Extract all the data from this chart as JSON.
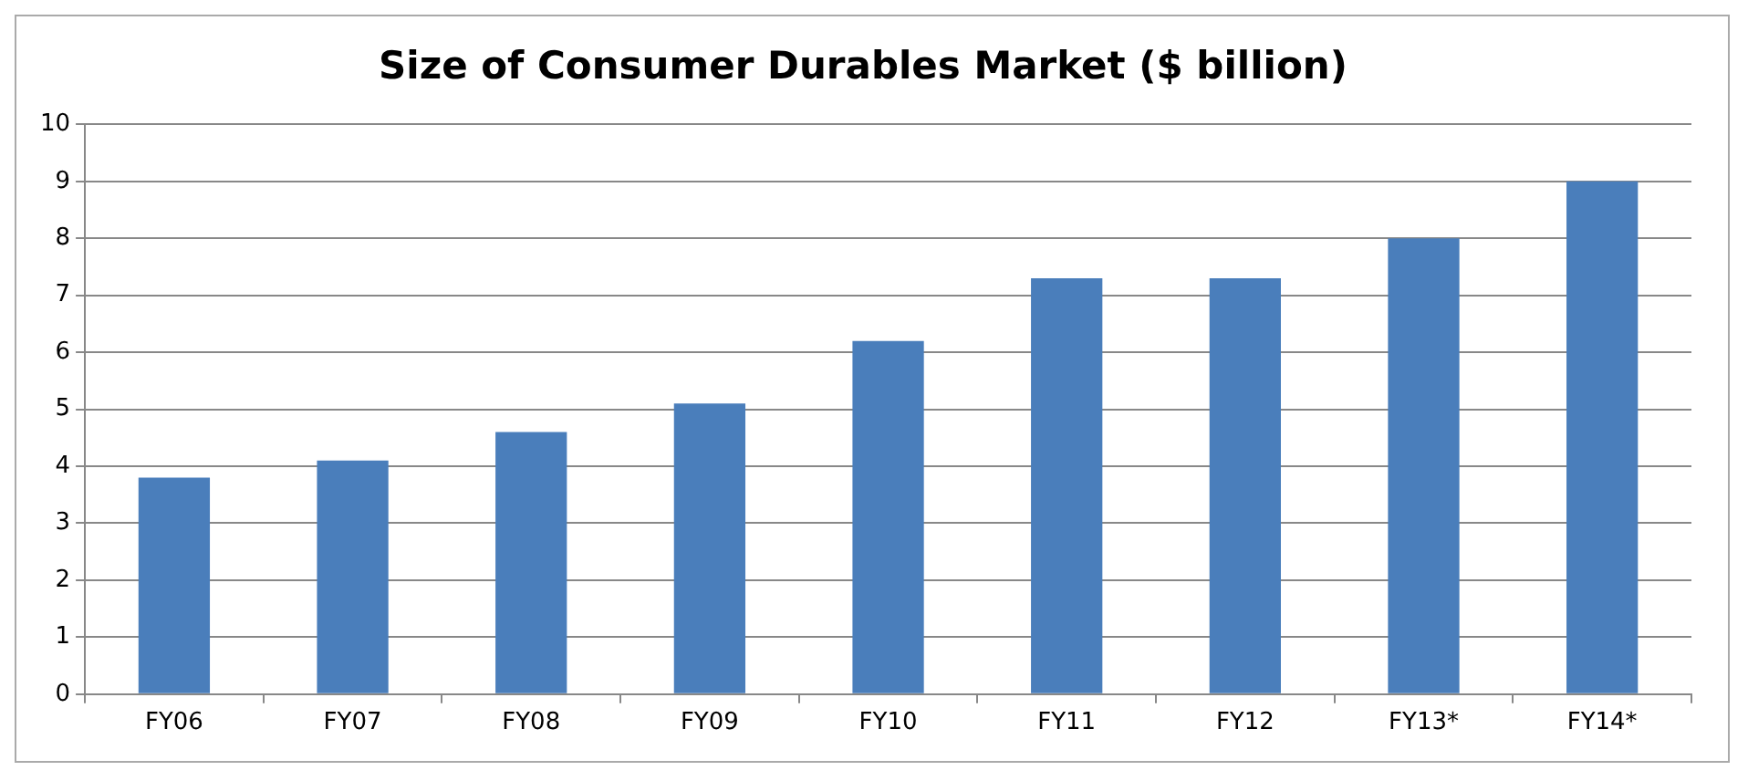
{
  "chart_data": {
    "type": "bar",
    "title": "Size of Consumer Durables Market ($ billion)",
    "categories": [
      "FY06",
      "FY07",
      "FY08",
      "FY09",
      "FY10",
      "FY11",
      "FY12",
      "FY13*",
      "FY14*"
    ],
    "values": [
      3.8,
      4.1,
      4.6,
      5.1,
      6.2,
      7.3,
      7.3,
      8.0,
      9.0
    ],
    "color": "#4a7ebb",
    "ylim": [
      0,
      10
    ],
    "yticks": [
      0,
      1,
      2,
      3,
      4,
      5,
      6,
      7,
      8,
      9,
      10
    ],
    "grid": "y"
  }
}
